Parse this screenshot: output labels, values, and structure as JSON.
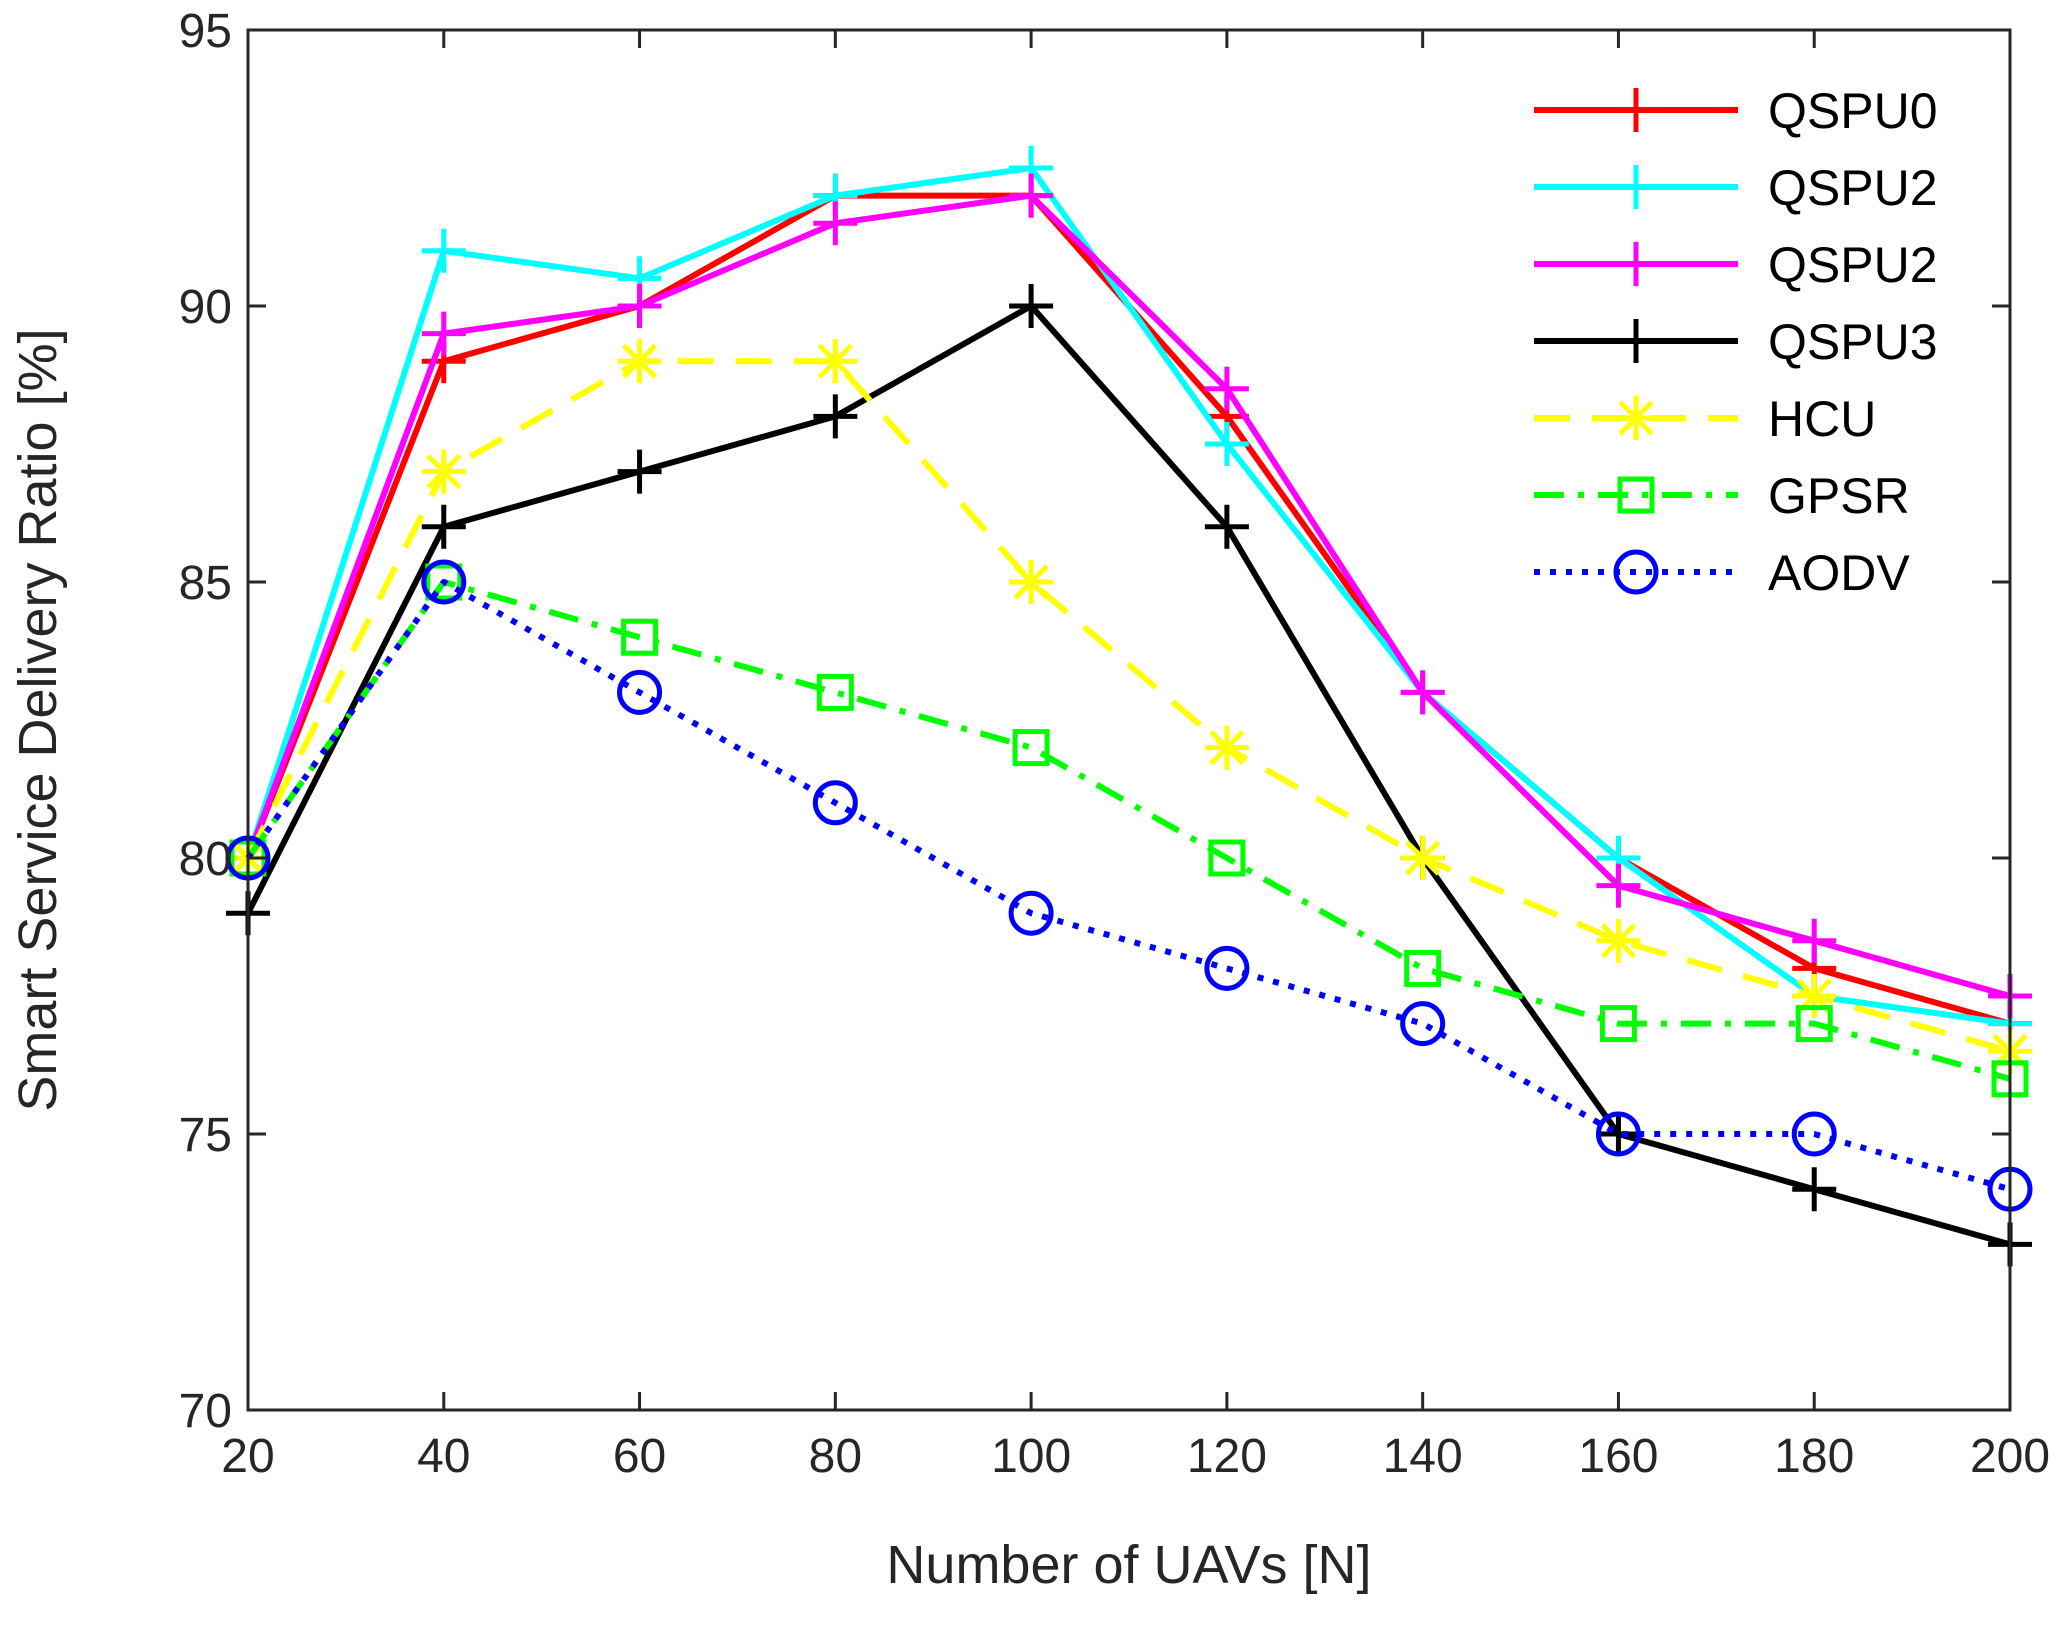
{
  "chart_data": {
    "type": "line",
    "title": "",
    "xlabel": "Number of UAVs [N]",
    "ylabel": "Smart Service Delivery Ratio [%]",
    "xlim": [
      20,
      200
    ],
    "ylim": [
      70,
      95
    ],
    "xticks": [
      20,
      40,
      60,
      80,
      100,
      120,
      140,
      160,
      180,
      200
    ],
    "yticks": [
      70,
      75,
      80,
      85,
      90,
      95
    ],
    "grid": false,
    "legend_position": "top-right",
    "x": [
      20,
      40,
      60,
      80,
      100,
      120,
      140,
      160,
      180,
      200
    ],
    "series": [
      {
        "name": "QSPU0",
        "color": "#ff0000",
        "dash": "solid",
        "marker": "plus",
        "values": [
          80,
          89,
          90,
          92,
          92,
          88,
          83,
          80,
          78,
          77
        ]
      },
      {
        "name": "QSPU2",
        "color": "#00ffff",
        "dash": "solid",
        "marker": "plus",
        "values": [
          80,
          91,
          90.5,
          92,
          92.5,
          87.5,
          83,
          80,
          77.5,
          77
        ]
      },
      {
        "name": "QSPU2",
        "color": "#ff00ff",
        "dash": "solid",
        "marker": "plus",
        "values": [
          80,
          89.5,
          90,
          91.5,
          92,
          88.5,
          83,
          79.5,
          78.5,
          77.5
        ]
      },
      {
        "name": "QSPU3",
        "color": "#000000",
        "dash": "solid",
        "marker": "plus",
        "values": [
          79,
          86,
          87,
          88,
          90,
          86,
          80,
          75,
          74,
          73
        ]
      },
      {
        "name": "HCU",
        "color": "#ffff00",
        "dash": "dashed",
        "marker": "asterisk",
        "values": [
          80,
          87,
          89,
          89,
          85,
          82,
          80,
          78.5,
          77.5,
          76.5
        ]
      },
      {
        "name": "GPSR",
        "color": "#00ff00",
        "dash": "dashdot",
        "marker": "square",
        "values": [
          80,
          85,
          84,
          83,
          82,
          80,
          78,
          77,
          77,
          76
        ]
      },
      {
        "name": "AODV",
        "color": "#0000ff",
        "dash": "dotted",
        "marker": "circle",
        "values": [
          80,
          85,
          83,
          81,
          79,
          78,
          77,
          75,
          75,
          74
        ]
      }
    ]
  }
}
